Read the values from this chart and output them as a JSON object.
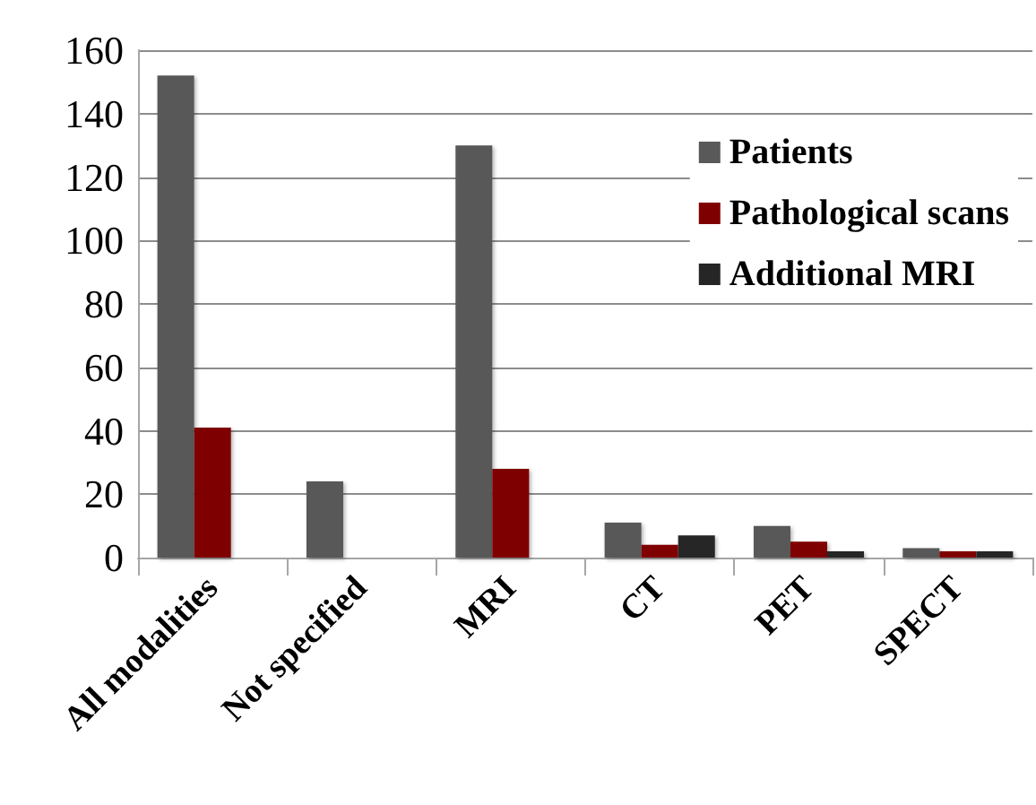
{
  "chart_data": {
    "type": "bar",
    "categories": [
      "All modalities",
      "Not specified",
      "MRI",
      "CT",
      "PET",
      "SPECT"
    ],
    "series": [
      {
        "name": "Patients",
        "color": "#595959",
        "values": [
          152,
          24,
          130,
          11,
          10,
          3
        ]
      },
      {
        "name": "Pathological scans",
        "color": "#7f0000",
        "values": [
          41,
          null,
          28,
          4,
          5,
          2
        ]
      },
      {
        "name": "Additional MRI",
        "color": "#262626",
        "values": [
          null,
          null,
          null,
          7,
          2,
          2
        ]
      }
    ],
    "ylim": [
      0,
      160
    ],
    "yticks": [
      0,
      20,
      40,
      60,
      80,
      100,
      120,
      140,
      160
    ],
    "grid": "y",
    "legend": "top right"
  }
}
